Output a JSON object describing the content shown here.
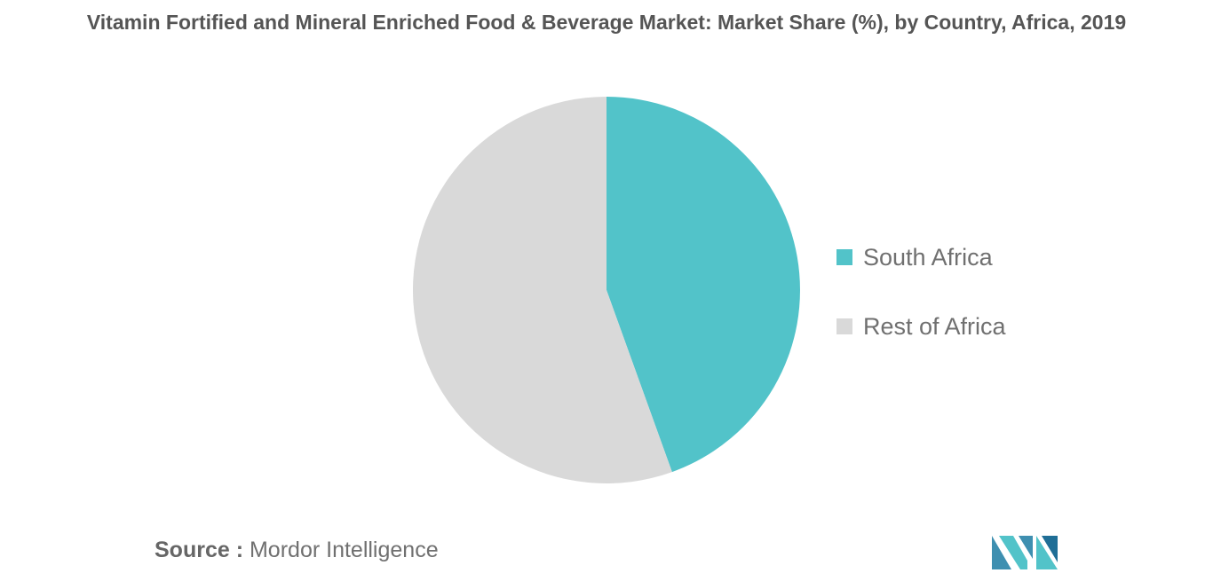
{
  "chart_data": {
    "type": "pie",
    "title": "Vitamin Fortified and Mineral Enriched Food & Beverage Market: Market Share (%), by Country, Africa, 2019",
    "slices": [
      {
        "label": "South Africa",
        "value": 44.5,
        "color": "#52c3c9"
      },
      {
        "label": "Rest of Africa",
        "value": 55.5,
        "color": "#d9d9d9"
      }
    ],
    "start_angle_deg": 0,
    "direction": "clockwise",
    "legend_position": "right"
  },
  "source": {
    "key": "Source :",
    "value": "Mordor Intelligence"
  },
  "logo": {
    "name": "mordor-intelligence-logo",
    "colors": [
      "#3e8fb0",
      "#52c3c9",
      "#1f6e96"
    ]
  }
}
